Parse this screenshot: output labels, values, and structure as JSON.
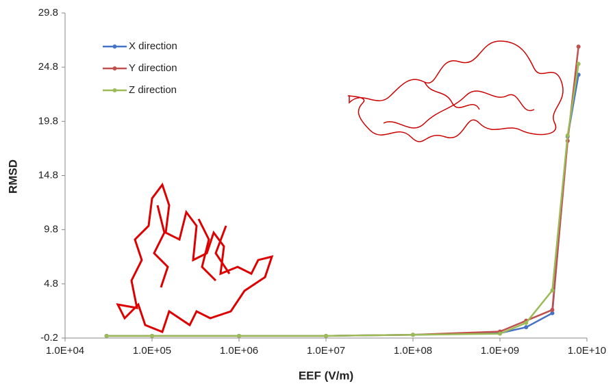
{
  "chart_data": {
    "type": "line",
    "x_label": "EEF (V/m)",
    "y_label": "RMSD",
    "x_scale": "log",
    "x": [
      30000,
      100000,
      1000000,
      10000000,
      100000000,
      1000000000,
      2000000000,
      4000000000,
      6000000000,
      8000000000
    ],
    "series": [
      {
        "name": "X direction",
        "color": "#4472c4",
        "values": [
          0.0,
          0.0,
          0.0,
          0.0,
          0.1,
          0.25,
          0.8,
          2.1,
          18.4,
          24.1
        ]
      },
      {
        "name": "Y direction",
        "color": "#c0504d",
        "values": [
          0.0,
          0.0,
          0.0,
          0.0,
          0.1,
          0.4,
          1.4,
          2.4,
          18.0,
          26.7
        ]
      },
      {
        "name": "Z direction",
        "color": "#9bbb59",
        "values": [
          0.0,
          0.0,
          0.0,
          0.0,
          0.1,
          0.2,
          1.2,
          4.2,
          18.5,
          25.1
        ]
      }
    ],
    "xlim": [
      10000,
      10000000000
    ],
    "xticks": [
      {
        "value": 10000,
        "label": "1.0E+04"
      },
      {
        "value": 100000,
        "label": "1.0E+05"
      },
      {
        "value": 1000000,
        "label": "1.0E+06"
      },
      {
        "value": 10000000,
        "label": "1.0E+07"
      },
      {
        "value": 100000000,
        "label": "1.0E+08"
      },
      {
        "value": 1000000000,
        "label": "1.0E+09"
      },
      {
        "value": 10000000000,
        "label": "1.0E+10"
      }
    ],
    "ylim": [
      -0.2,
      29.8
    ],
    "yticks": [
      -0.2,
      4.8,
      9.8,
      14.8,
      19.8,
      24.8,
      29.8
    ],
    "legend": "top-left",
    "grid": false
  }
}
